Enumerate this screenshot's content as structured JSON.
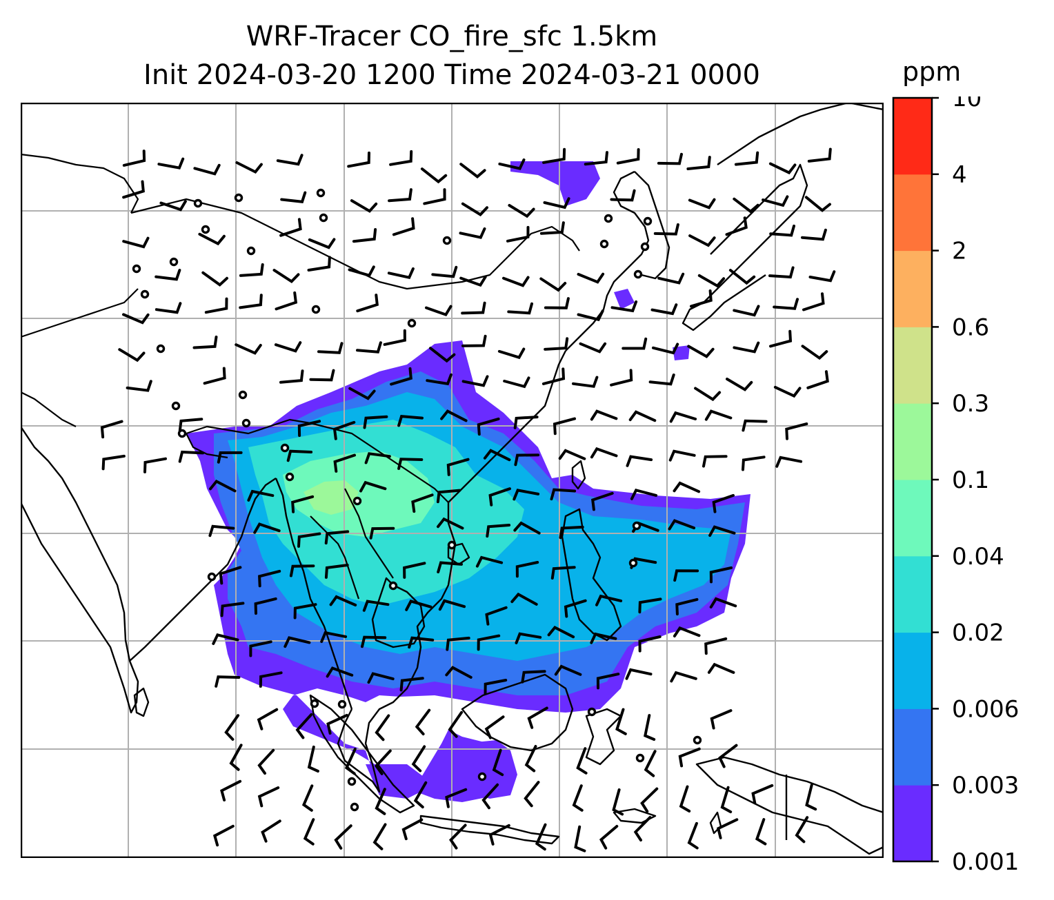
{
  "title": {
    "line1": "WRF-Tracer CO_fire_sfc 1.5km",
    "line2": "Init 2024-03-20 1200 Time 2024-03-21 0000"
  },
  "colorbar": {
    "unit": "ppm",
    "ticks": [
      "0.001",
      "0.003",
      "0.006",
      "0.02",
      "0.04",
      "0.1",
      "0.3",
      "0.6",
      "2",
      "4",
      "10"
    ],
    "colors": [
      "#6a2cff",
      "#3475f2",
      "#08b2ea",
      "#32dfd3",
      "#6ef9bb",
      "#9cf89a",
      "#cfe28a",
      "#fdb05f",
      "#ff7439",
      "#ff2a17"
    ]
  },
  "map": {
    "field": "CO_fire_sfc",
    "level": "1.5km",
    "gridlines": true,
    "features": [
      "coastlines",
      "country-borders",
      "wind-barbs"
    ],
    "plume_colors": {
      "outer": "#6a2cff",
      "band2": "#3475f2",
      "band3": "#08b2ea",
      "band4": "#32dfd3",
      "band5": "#6ef9bb",
      "band6": "#9cf89a"
    }
  }
}
